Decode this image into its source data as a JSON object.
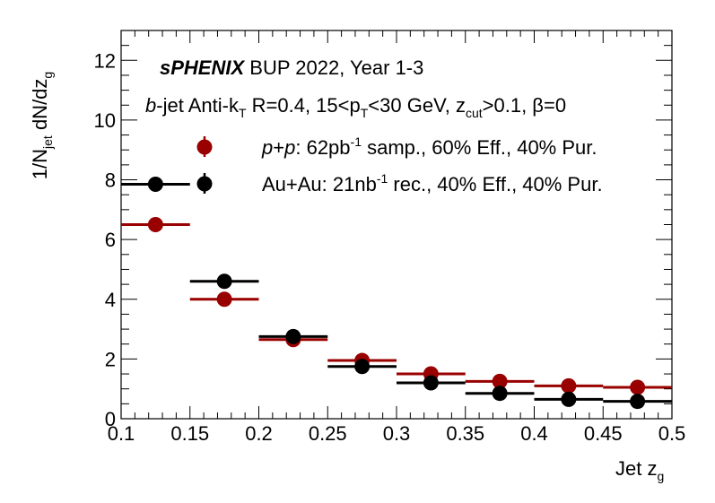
{
  "chart_data": {
    "type": "scatter",
    "title": "sPHENIX BUP 2022, Year 1-3",
    "title_bold": "sPHENIX",
    "title_rest": "BUP 2022, Year 1-3",
    "subtitle": "b-jet Anti-kT R=0.4, 15<pT<30 GeV, zcut>0.1, β=0",
    "xlabel": "Jet z_g",
    "ylabel": "1/N_jet dN/dz_g",
    "xlim": [
      0.1,
      0.5
    ],
    "ylim": [
      0,
      13
    ],
    "x_ticks": [
      "0.1",
      "0.15",
      "0.2",
      "0.25",
      "0.3",
      "0.35",
      "0.4",
      "0.45",
      "0.5"
    ],
    "y_ticks": [
      "0",
      "2",
      "4",
      "6",
      "8",
      "10",
      "12"
    ],
    "bin_edges": [
      0.1,
      0.15,
      0.2,
      0.25,
      0.3,
      0.35,
      0.4,
      0.45,
      0.5
    ],
    "series": [
      {
        "name": "p+p: 62pb-1 samp., 60% Eff., 40% Pur.",
        "color": "#990000",
        "x": [
          0.125,
          0.175,
          0.225,
          0.275,
          0.325,
          0.375,
          0.425,
          0.475
        ],
        "values": [
          6.5,
          4.0,
          2.65,
          1.95,
          1.5,
          1.25,
          1.1,
          1.05
        ]
      },
      {
        "name": "Au+Au: 21nb-1 rec., 40% Eff., 40% Pur.",
        "color": "#000000",
        "x": [
          0.125,
          0.175,
          0.225,
          0.275,
          0.325,
          0.375,
          0.425,
          0.475
        ],
        "values": [
          7.85,
          4.6,
          2.75,
          1.75,
          1.2,
          0.85,
          0.65,
          0.58
        ]
      }
    ]
  }
}
